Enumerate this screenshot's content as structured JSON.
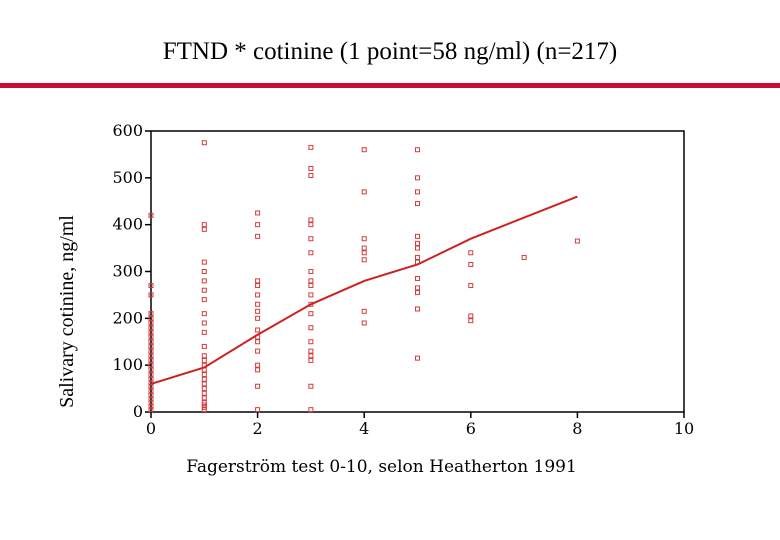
{
  "title": "FTND * cotinine (1 point=58 ng/ml) (n=217)",
  "colors": {
    "accent": "#c8102e",
    "marker": "#d43c3c",
    "line": "#cc2222"
  },
  "chart_data": {
    "type": "scatter",
    "title": "FTND * cotinine (1 point=58 ng/ml) (n=217)",
    "xlabel": "Fagerström test 0-10, selon Heatherton 1991",
    "ylabel": "Salivary cotinine, ng/ml",
    "xlim": [
      0,
      10
    ],
    "ylim": [
      0,
      600
    ],
    "xticks": [
      "0",
      "2",
      "4",
      "6",
      "8",
      "10"
    ],
    "yticks": [
      "0",
      "100",
      "200",
      "300",
      "400",
      "500",
      "600"
    ],
    "grid": false,
    "points": [
      [
        0,
        5
      ],
      [
        0,
        12
      ],
      [
        0,
        20
      ],
      [
        0,
        28
      ],
      [
        0,
        35
      ],
      [
        0,
        45
      ],
      [
        0,
        55
      ],
      [
        0,
        62
      ],
      [
        0,
        70
      ],
      [
        0,
        80
      ],
      [
        0,
        90
      ],
      [
        0,
        100
      ],
      [
        0,
        110
      ],
      [
        0,
        120
      ],
      [
        0,
        130
      ],
      [
        0,
        140
      ],
      [
        0,
        150
      ],
      [
        0,
        160
      ],
      [
        0,
        170
      ],
      [
        0,
        180
      ],
      [
        0,
        190
      ],
      [
        0,
        200
      ],
      [
        0,
        210
      ],
      [
        0,
        250
      ],
      [
        0,
        270
      ],
      [
        0,
        420
      ],
      [
        1,
        5
      ],
      [
        1,
        10
      ],
      [
        1,
        15
      ],
      [
        1,
        20
      ],
      [
        1,
        30
      ],
      [
        1,
        40
      ],
      [
        1,
        50
      ],
      [
        1,
        60
      ],
      [
        1,
        70
      ],
      [
        1,
        80
      ],
      [
        1,
        90
      ],
      [
        1,
        100
      ],
      [
        1,
        110
      ],
      [
        1,
        120
      ],
      [
        1,
        140
      ],
      [
        1,
        170
      ],
      [
        1,
        190
      ],
      [
        1,
        210
      ],
      [
        1,
        240
      ],
      [
        1,
        260
      ],
      [
        1,
        280
      ],
      [
        1,
        300
      ],
      [
        1,
        320
      ],
      [
        1,
        390
      ],
      [
        1,
        400
      ],
      [
        1,
        575
      ],
      [
        2,
        5
      ],
      [
        2,
        55
      ],
      [
        2,
        90
      ],
      [
        2,
        100
      ],
      [
        2,
        130
      ],
      [
        2,
        150
      ],
      [
        2,
        160
      ],
      [
        2,
        175
      ],
      [
        2,
        200
      ],
      [
        2,
        215
      ],
      [
        2,
        230
      ],
      [
        2,
        250
      ],
      [
        2,
        270
      ],
      [
        2,
        280
      ],
      [
        2,
        375
      ],
      [
        2,
        400
      ],
      [
        2,
        425
      ],
      [
        3,
        5
      ],
      [
        3,
        55
      ],
      [
        3,
        110
      ],
      [
        3,
        120
      ],
      [
        3,
        130
      ],
      [
        3,
        150
      ],
      [
        3,
        180
      ],
      [
        3,
        210
      ],
      [
        3,
        230
      ],
      [
        3,
        250
      ],
      [
        3,
        270
      ],
      [
        3,
        280
      ],
      [
        3,
        300
      ],
      [
        3,
        340
      ],
      [
        3,
        370
      ],
      [
        3,
        400
      ],
      [
        3,
        410
      ],
      [
        3,
        505
      ],
      [
        3,
        520
      ],
      [
        3,
        565
      ],
      [
        4,
        190
      ],
      [
        4,
        215
      ],
      [
        4,
        325
      ],
      [
        4,
        340
      ],
      [
        4,
        350
      ],
      [
        4,
        370
      ],
      [
        4,
        470
      ],
      [
        4,
        560
      ],
      [
        5,
        115
      ],
      [
        5,
        220
      ],
      [
        5,
        255
      ],
      [
        5,
        265
      ],
      [
        5,
        285
      ],
      [
        5,
        320
      ],
      [
        5,
        330
      ],
      [
        5,
        350
      ],
      [
        5,
        360
      ],
      [
        5,
        375
      ],
      [
        5,
        445
      ],
      [
        5,
        470
      ],
      [
        5,
        500
      ],
      [
        5,
        560
      ],
      [
        6,
        195
      ],
      [
        6,
        205
      ],
      [
        6,
        270
      ],
      [
        6,
        315
      ],
      [
        6,
        340
      ],
      [
        7,
        330
      ],
      [
        8,
        365
      ]
    ],
    "fit_line": {
      "x": [
        0,
        1,
        2,
        3,
        4,
        5,
        6,
        7,
        8
      ],
      "y": [
        60,
        95,
        165,
        230,
        280,
        315,
        370,
        415,
        460
      ]
    }
  }
}
